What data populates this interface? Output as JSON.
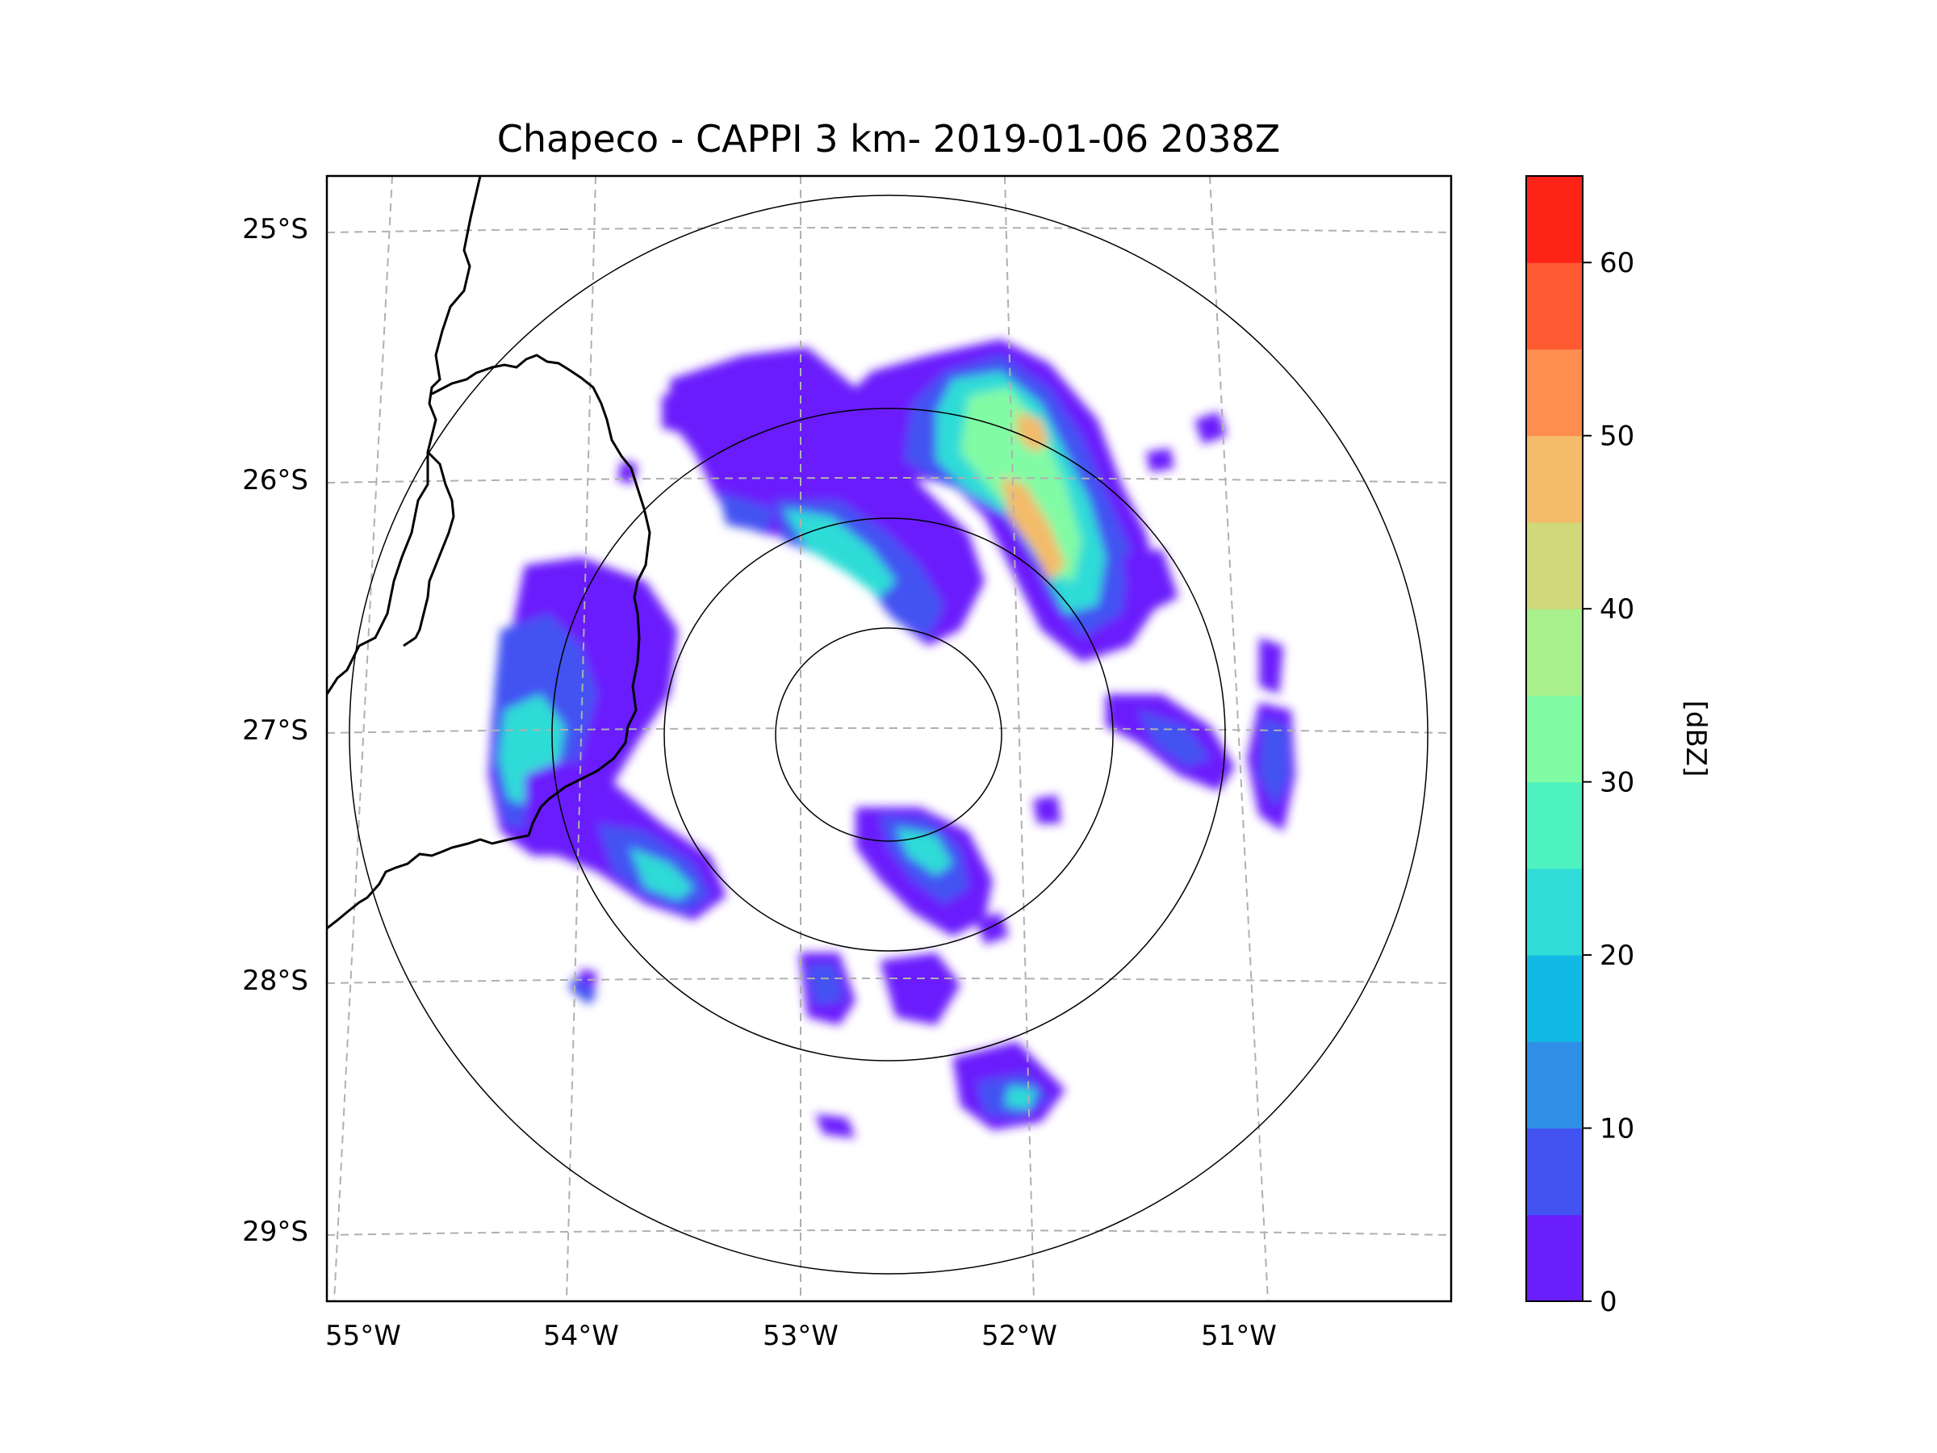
{
  "title": "Chapeco - CAPPI 3 km- 2019-01-06 2038Z",
  "map": {
    "lon_ticks": [
      "55°W",
      "54°W",
      "53°W",
      "52°W",
      "51°W"
    ],
    "lat_ticks": [
      "25°S",
      "26°S",
      "27°S",
      "28°S",
      "29°S"
    ],
    "gridlines": "dashed",
    "range_rings": 4,
    "coastlines": "state borders"
  },
  "colorbar": {
    "label": "[dBZ]",
    "tick_labels": [
      "0",
      "10",
      "20",
      "30",
      "40",
      "50",
      "60"
    ],
    "tick_values": [
      0,
      10,
      20,
      30,
      40,
      50,
      60
    ],
    "vmin": 0,
    "vmax": 65,
    "colors": [
      "#6a1efc",
      "#4253f2",
      "#2f8fe6",
      "#12b9e4",
      "#2fdcd7",
      "#4ef2be",
      "#82fba5",
      "#a8f08b",
      "#cfd97a",
      "#f3bb6a",
      "#fd8e4f",
      "#fd5a32",
      "#fd2317"
    ]
  },
  "chart_data": {
    "type": "heatmap",
    "title": "Chapeco - CAPPI 3 km- 2019-01-06 2038Z",
    "xlabel": "",
    "ylabel": "",
    "xlim": [
      -55.15,
      -50.05
    ],
    "ylim": [
      -29.25,
      -24.75
    ],
    "value_label": "[dBZ]",
    "value_range": [
      0,
      65
    ],
    "echo_regions": [
      {
        "lon": -52.2,
        "lat": -25.85,
        "max_dbz": 45
      },
      {
        "lon": -51.85,
        "lat": -26.45,
        "max_dbz": 50
      },
      {
        "lon": -52.45,
        "lat": -26.3,
        "max_dbz": 30
      },
      {
        "lon": -54.3,
        "lat": -27.0,
        "max_dbz": 25
      },
      {
        "lon": -53.45,
        "lat": -27.6,
        "max_dbz": 25
      },
      {
        "lon": -52.3,
        "lat": -27.5,
        "max_dbz": 20
      },
      {
        "lon": -51.25,
        "lat": -27.05,
        "max_dbz": 20
      },
      {
        "lon": -52.25,
        "lat": -28.5,
        "max_dbz": 25
      }
    ]
  }
}
